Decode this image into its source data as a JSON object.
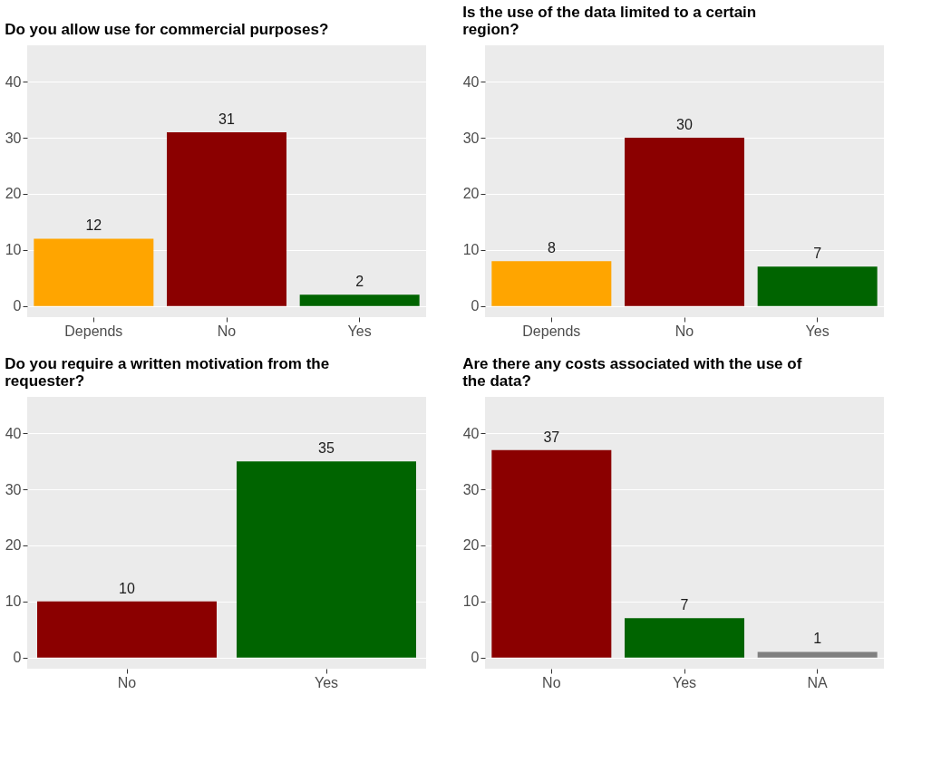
{
  "chart_data": [
    {
      "type": "bar",
      "title": "Do you allow use for commercial purposes?",
      "categories": [
        "Depends",
        "No",
        "Yes"
      ],
      "values": [
        12,
        31,
        2
      ],
      "colors": [
        "#ffa500",
        "#8b0000",
        "#006400"
      ],
      "ylim": [
        -2,
        46.5
      ],
      "yticks": [
        0,
        10,
        20,
        30,
        40
      ],
      "data_labels": true,
      "grid": true
    },
    {
      "type": "bar",
      "title": "Is the use of the data limited to a certain region?",
      "categories": [
        "Depends",
        "No",
        "Yes"
      ],
      "values": [
        8,
        30,
        7
      ],
      "colors": [
        "#ffa500",
        "#8b0000",
        "#006400"
      ],
      "ylim": [
        -2,
        46.5
      ],
      "yticks": [
        0,
        10,
        20,
        30,
        40
      ],
      "data_labels": true,
      "grid": true
    },
    {
      "type": "bar",
      "title": "Do you require a written motivation from the requester?",
      "categories": [
        "No",
        "Yes"
      ],
      "values": [
        10,
        35
      ],
      "colors": [
        "#8b0000",
        "#006400"
      ],
      "ylim": [
        -2,
        46.5
      ],
      "yticks": [
        0,
        10,
        20,
        30,
        40
      ],
      "data_labels": true,
      "grid": true
    },
    {
      "type": "bar",
      "title": "Are there any costs associated with the use of the data?",
      "categories": [
        "No",
        "Yes",
        "NA"
      ],
      "values": [
        37,
        7,
        1
      ],
      "colors": [
        "#8b0000",
        "#006400",
        "#808080"
      ],
      "ylim": [
        -2,
        46.5
      ],
      "yticks": [
        0,
        10,
        20,
        30,
        40
      ],
      "data_labels": true,
      "grid": true
    }
  ]
}
